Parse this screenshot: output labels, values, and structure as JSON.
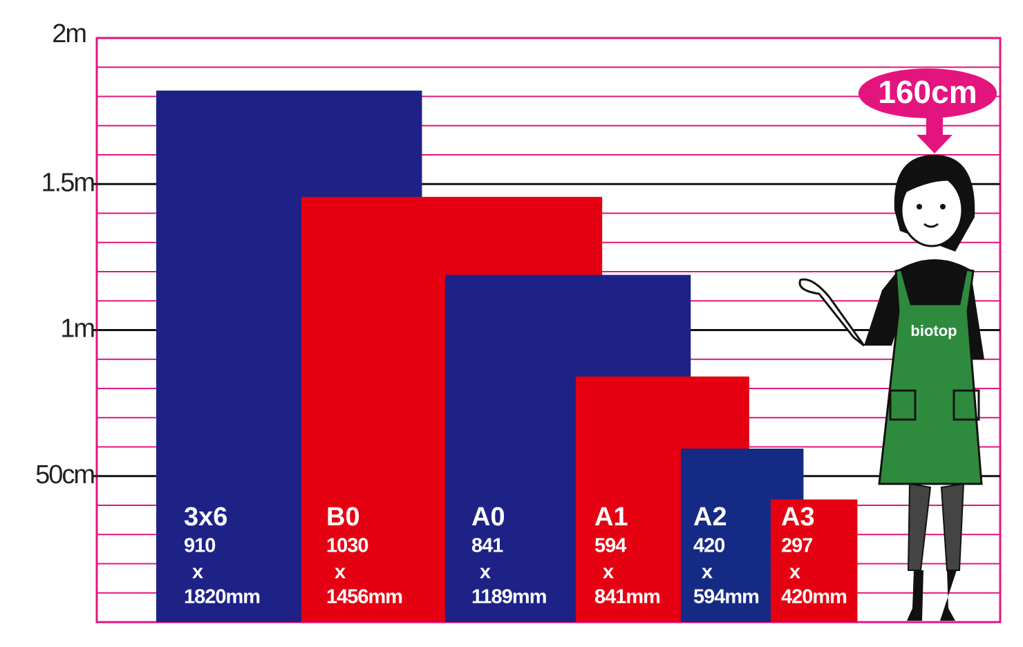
{
  "chart_data": {
    "type": "size-comparison",
    "ylim": [
      0,
      2000
    ],
    "yticks": [
      {
        "value": 500,
        "label": "50cm"
      },
      {
        "value": 1000,
        "label": "1m"
      },
      {
        "value": 1500,
        "label": "1.5m"
      },
      {
        "value": 2000,
        "label": "2m"
      }
    ],
    "minor_grid": 100,
    "grid_color": "#e4147f",
    "separator": "x",
    "items": [
      {
        "name": "3x6",
        "width": 910,
        "height": 1820,
        "height_label": "1820mm",
        "color": "#1e2287"
      },
      {
        "name": "B0",
        "width": 1030,
        "height": 1456,
        "height_label": "1456mm",
        "color": "#e50012"
      },
      {
        "name": "A0",
        "width": 841,
        "height": 1189,
        "height_label": "1189mm",
        "color": "#1e2287"
      },
      {
        "name": "A1",
        "width": 594,
        "height": 841,
        "height_label": "841mm",
        "color": "#e50012"
      },
      {
        "name": "A2",
        "width": 420,
        "height": 594,
        "height_label": "594mm",
        "color": "#152a85"
      },
      {
        "name": "A3",
        "width": 297,
        "height": 420,
        "height_label": "420mm",
        "color": "#e50012"
      }
    ],
    "person": {
      "height": 1600,
      "label": "160cm",
      "logo": "biotop"
    }
  }
}
